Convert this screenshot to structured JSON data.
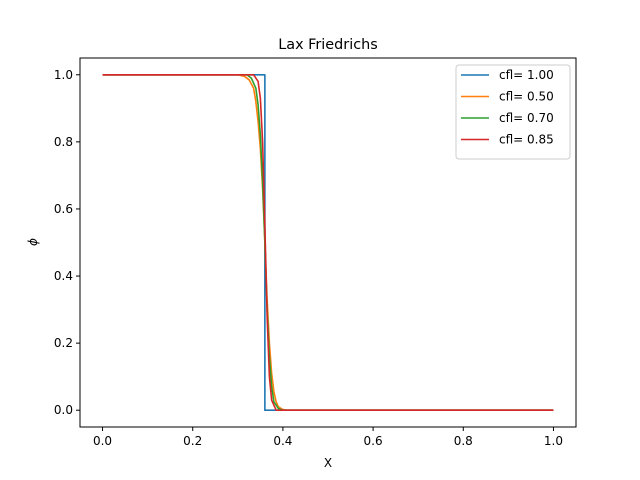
{
  "chart_data": {
    "type": "line",
    "title": "Lax Friedrichs",
    "xlabel": "X",
    "ylabel": "ϕ",
    "xlim": [
      -0.05,
      1.05
    ],
    "ylim": [
      -0.05,
      1.05
    ],
    "xticks": [
      0.0,
      0.2,
      0.4,
      0.6,
      0.8,
      1.0
    ],
    "xtick_labels": [
      "0.0",
      "0.2",
      "0.4",
      "0.6",
      "0.8",
      "1.0"
    ],
    "yticks": [
      0.0,
      0.2,
      0.4,
      0.6,
      0.8,
      1.0
    ],
    "ytick_labels": [
      "0.0",
      "0.2",
      "0.4",
      "0.6",
      "0.8",
      "1.0"
    ],
    "grid": false,
    "legend_position": "top-right",
    "series": [
      {
        "name": "cfl= 1.00",
        "color": "#1f77b4",
        "x": [
          0.0,
          0.355,
          0.355,
          0.36,
          0.36,
          0.365,
          0.365,
          1.0
        ],
        "y": [
          1.0,
          1.0,
          1.0,
          1.0,
          0.0,
          0.0,
          0.0,
          0.0
        ]
      },
      {
        "name": "cfl= 0.50",
        "color": "#ff7f0e",
        "x": [
          0.0,
          0.3,
          0.315,
          0.325,
          0.335,
          0.34,
          0.345,
          0.35,
          0.355,
          0.36,
          0.365,
          0.37,
          0.375,
          0.38,
          0.385,
          0.39,
          0.4,
          0.41,
          1.0
        ],
        "y": [
          1.0,
          1.0,
          0.995,
          0.985,
          0.96,
          0.92,
          0.86,
          0.78,
          0.66,
          0.5,
          0.33,
          0.2,
          0.11,
          0.055,
          0.025,
          0.01,
          0.002,
          0.0,
          0.0
        ]
      },
      {
        "name": "cfl= 0.70",
        "color": "#2ca02c",
        "x": [
          0.0,
          0.32,
          0.33,
          0.34,
          0.345,
          0.35,
          0.355,
          0.36,
          0.365,
          0.37,
          0.375,
          0.38,
          0.39,
          0.4,
          1.0
        ],
        "y": [
          1.0,
          1.0,
          0.99,
          0.96,
          0.91,
          0.82,
          0.68,
          0.5,
          0.3,
          0.16,
          0.07,
          0.025,
          0.005,
          0.0,
          0.0
        ]
      },
      {
        "name": "cfl= 0.85",
        "color": "#d62728",
        "x": [
          0.0,
          0.335,
          0.345,
          0.35,
          0.355,
          0.36,
          0.365,
          0.37,
          0.375,
          0.385,
          1.0
        ],
        "y": [
          1.0,
          1.0,
          0.98,
          0.93,
          0.8,
          0.55,
          0.28,
          0.1,
          0.03,
          0.0,
          0.0
        ]
      }
    ]
  }
}
